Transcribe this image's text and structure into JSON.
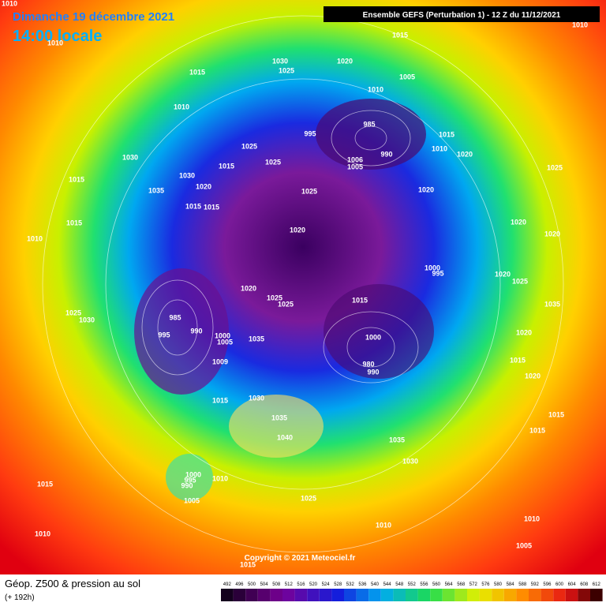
{
  "header": {
    "date": "Dimanche 19 décembre 2021",
    "time": "14:00 locale",
    "model": "Ensemble GEFS  (Perturbation 1)  -  12 Z du 11/12/2021"
  },
  "map": {
    "pressure_labels": [
      1010,
      1010,
      1010,
      1015,
      1030,
      1020,
      1025,
      1015,
      1005,
      1010,
      1010,
      985,
      995,
      1015,
      990,
      1010,
      1020,
      1025,
      1030,
      1006,
      1005,
      1025,
      1015,
      1025,
      1030,
      1015,
      1020,
      1035,
      1025,
      1020,
      1015,
      1015,
      1015,
      1020,
      1020,
      1020,
      1010,
      1000,
      995,
      1020,
      1025,
      1020,
      1025,
      1025,
      1015,
      1035,
      1025,
      1030,
      985,
      995,
      990,
      1000,
      1005,
      1035,
      1000,
      1020,
      1015,
      1009,
      980,
      990,
      1020,
      1015,
      1030,
      1015,
      1035,
      1015,
      1040,
      1035,
      1030,
      1000,
      995,
      990,
      1010,
      1015,
      1025,
      1005,
      1010,
      1010,
      1010,
      1005,
      1015
    ],
    "copyright": "Copyright © 2021 Meteociel.fr"
  },
  "footer": {
    "title": "Géop. Z500 & pression au sol",
    "lead": "(+ 192h)",
    "scale": [
      492,
      496,
      500,
      504,
      508,
      512,
      516,
      520,
      524,
      528,
      532,
      536,
      540,
      544,
      548,
      552,
      556,
      560,
      564,
      568,
      572,
      576,
      580,
      584,
      588,
      592,
      596,
      600,
      604,
      608,
      612
    ]
  }
}
